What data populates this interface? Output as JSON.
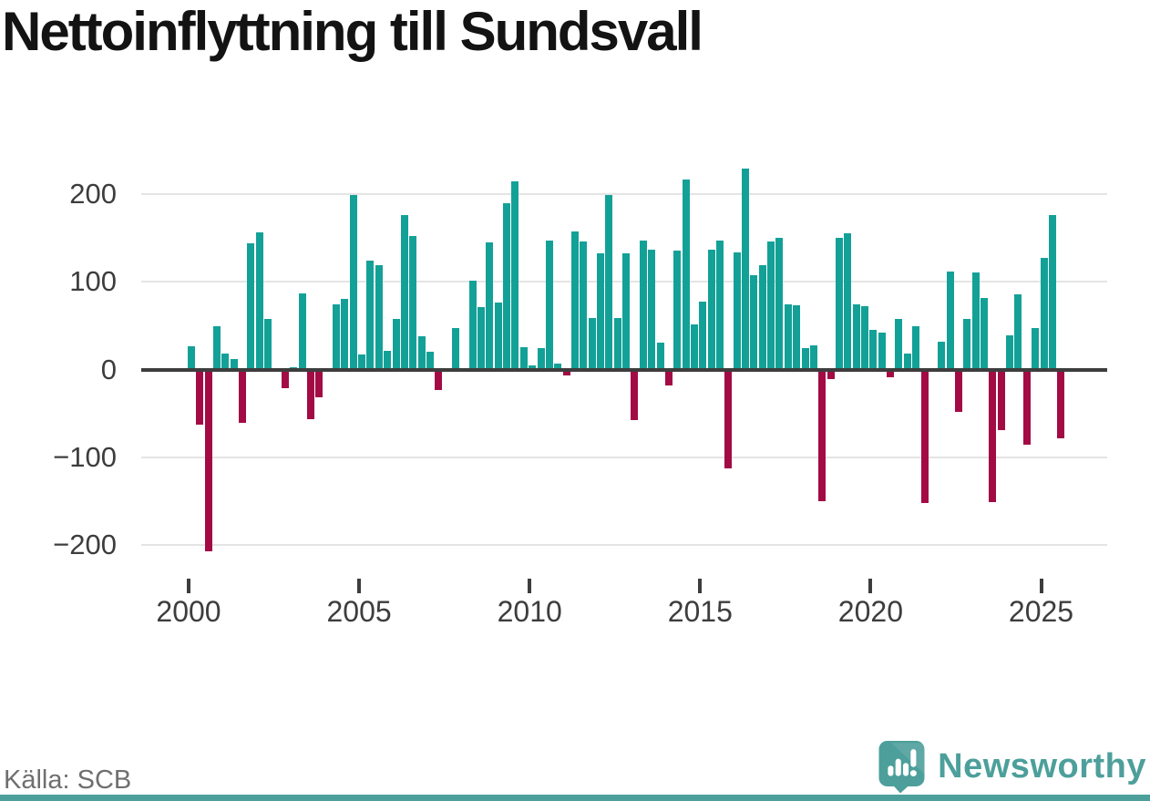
{
  "title": "Nettoinflyttning till Sundsvall",
  "source": "Källa: SCB",
  "branding": {
    "name": "Newsworthy",
    "icon": "newsworthy-speech-bubble-chart-icon"
  },
  "colors": {
    "positive_bar": "#13a197",
    "negative_bar": "#a30b45",
    "brand_teal": "#4d9f9b",
    "gridline": "#e4e4e4",
    "axis_line": "#3d3d3d",
    "axis_text": "#3d3d3d",
    "title_text": "#131313",
    "source_text": "#6f6f6f",
    "background": "#ffffff"
  },
  "chart_data": {
    "type": "bar",
    "title": "Nettoinflyttning till Sundsvall",
    "xlabel": "",
    "ylabel": "",
    "unit": "persons per quarter (net migration)",
    "grid": "horizontal",
    "legend": "none",
    "ylim": [
      -230,
      240
    ],
    "yticks": [
      200,
      100,
      0,
      -100,
      -200
    ],
    "ytick_labels": [
      "200",
      "100",
      "0",
      "−100",
      "−200"
    ],
    "xticks": [
      2000,
      2005,
      2010,
      2015,
      2020,
      2025
    ],
    "xtick_labels": [
      "2000",
      "2005",
      "2010",
      "2015",
      "2020",
      "2025"
    ],
    "points": [
      [
        "2000 Q1",
        26
      ],
      [
        "2000 Q2",
        -63
      ],
      [
        "2000 Q3",
        -207
      ],
      [
        "2000 Q4",
        49
      ],
      [
        "2001 Q1",
        18
      ],
      [
        "2001 Q2",
        12
      ],
      [
        "2001 Q3",
        -61
      ],
      [
        "2001 Q4",
        144
      ],
      [
        "2002 Q1",
        156
      ],
      [
        "2002 Q2",
        58
      ],
      [
        "2002 Q3",
        0
      ],
      [
        "2002 Q4",
        -21
      ],
      [
        "2003 Q1",
        3
      ],
      [
        "2003 Q2",
        87
      ],
      [
        "2003 Q3",
        -57
      ],
      [
        "2003 Q4",
        -32
      ],
      [
        "2004 Q1",
        0
      ],
      [
        "2004 Q2",
        74
      ],
      [
        "2004 Q3",
        80
      ],
      [
        "2004 Q4",
        199
      ],
      [
        "2005 Q1",
        17
      ],
      [
        "2005 Q2",
        124
      ],
      [
        "2005 Q3",
        119
      ],
      [
        "2005 Q4",
        21
      ],
      [
        "2006 Q1",
        58
      ],
      [
        "2006 Q2",
        176
      ],
      [
        "2006 Q3",
        152
      ],
      [
        "2006 Q4",
        38
      ],
      [
        "2007 Q1",
        20
      ],
      [
        "2007 Q2",
        -23
      ],
      [
        "2007 Q3",
        0
      ],
      [
        "2007 Q4",
        47
      ],
      [
        "2008 Q1",
        0
      ],
      [
        "2008 Q2",
        101
      ],
      [
        "2008 Q3",
        71
      ],
      [
        "2008 Q4",
        145
      ],
      [
        "2009 Q1",
        76
      ],
      [
        "2009 Q2",
        190
      ],
      [
        "2009 Q3",
        214
      ],
      [
        "2009 Q4",
        25
      ],
      [
        "2010 Q1",
        5
      ],
      [
        "2010 Q2",
        24
      ],
      [
        "2010 Q3",
        147
      ],
      [
        "2010 Q4",
        7
      ],
      [
        "2011 Q1",
        -7
      ],
      [
        "2011 Q2",
        157
      ],
      [
        "2011 Q3",
        146
      ],
      [
        "2011 Q4",
        59
      ],
      [
        "2012 Q1",
        132
      ],
      [
        "2012 Q2",
        199
      ],
      [
        "2012 Q3",
        59
      ],
      [
        "2012 Q4",
        132
      ],
      [
        "2013 Q1",
        -58
      ],
      [
        "2013 Q2",
        147
      ],
      [
        "2013 Q3",
        137
      ],
      [
        "2013 Q4",
        31
      ],
      [
        "2014 Q1",
        -18
      ],
      [
        "2014 Q2",
        135
      ],
      [
        "2014 Q3",
        216
      ],
      [
        "2014 Q4",
        51
      ],
      [
        "2015 Q1",
        77
      ],
      [
        "2015 Q2",
        137
      ],
      [
        "2015 Q3",
        147
      ],
      [
        "2015 Q4",
        -113
      ],
      [
        "2016 Q1",
        133
      ],
      [
        "2016 Q2",
        229
      ],
      [
        "2016 Q3",
        107
      ],
      [
        "2016 Q4",
        119
      ],
      [
        "2017 Q1",
        146
      ],
      [
        "2017 Q2",
        150
      ],
      [
        "2017 Q3",
        74
      ],
      [
        "2017 Q4",
        73
      ],
      [
        "2018 Q1",
        24
      ],
      [
        "2018 Q2",
        27
      ],
      [
        "2018 Q3",
        -150
      ],
      [
        "2018 Q4",
        -11
      ],
      [
        "2019 Q1",
        150
      ],
      [
        "2019 Q2",
        155
      ],
      [
        "2019 Q3",
        74
      ],
      [
        "2019 Q4",
        72
      ],
      [
        "2020 Q1",
        45
      ],
      [
        "2020 Q2",
        42
      ],
      [
        "2020 Q3",
        -9
      ],
      [
        "2020 Q4",
        58
      ],
      [
        "2021 Q1",
        18
      ],
      [
        "2021 Q2",
        49
      ],
      [
        "2021 Q3",
        -152
      ],
      [
        "2021 Q4",
        -3
      ],
      [
        "2022 Q1",
        32
      ],
      [
        "2022 Q2",
        112
      ],
      [
        "2022 Q3",
        -48
      ],
      [
        "2022 Q4",
        58
      ],
      [
        "2023 Q1",
        111
      ],
      [
        "2023 Q2",
        82
      ],
      [
        "2023 Q3",
        -151
      ],
      [
        "2023 Q4",
        -69
      ],
      [
        "2024 Q1",
        39
      ],
      [
        "2024 Q2",
        86
      ],
      [
        "2024 Q3",
        -86
      ],
      [
        "2024 Q4",
        47
      ],
      [
        "2025 Q1",
        127
      ],
      [
        "2025 Q2",
        176
      ],
      [
        "2025 Q3",
        -78
      ]
    ]
  }
}
